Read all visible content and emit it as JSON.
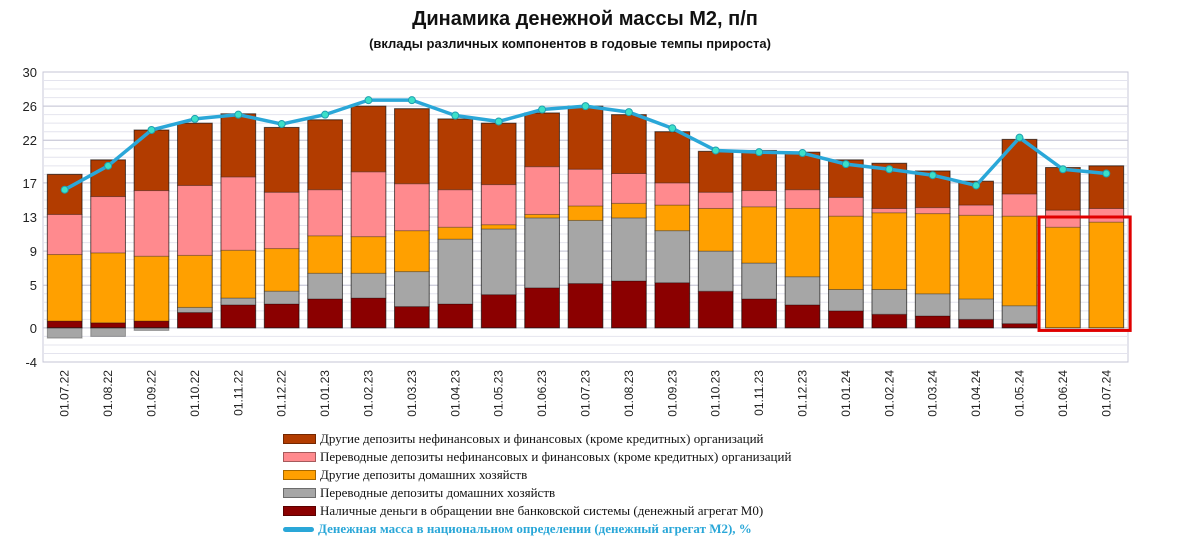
{
  "chart_data": {
    "type": "bar",
    "stacked": true,
    "title": "Динамика денежной массы М2, п/п",
    "subtitle": "(вклады различных компонентов в годовые темпы прироста)",
    "xlabel": "",
    "ylabel": "",
    "ylim": [
      -4,
      30
    ],
    "yticks": [
      -4,
      0,
      5,
      9,
      13,
      17,
      22,
      26,
      30
    ],
    "grid": true,
    "legend_position": "bottom",
    "categories": [
      "01.07.22",
      "01.08.22",
      "01.09.22",
      "01.10.22",
      "01.11.22",
      "01.12.22",
      "01.01.23",
      "01.02.23",
      "01.03.23",
      "01.04.23",
      "01.05.23",
      "01.06.23",
      "01.07.23",
      "01.08.23",
      "01.09.23",
      "01.10.23",
      "01.11.23",
      "01.12.23",
      "01.01.24",
      "01.02.24",
      "01.03.24",
      "01.04.24",
      "01.05.24",
      "01.06.24",
      "01.07.24"
    ],
    "series": [
      {
        "name": "Наличные деньги в обращении вне банковской системы (денежный агрегат М0)",
        "color": "#8b0000",
        "values": [
          0.8,
          0.6,
          0.8,
          1.8,
          2.7,
          2.8,
          3.4,
          3.5,
          2.5,
          2.8,
          3.9,
          4.7,
          5.2,
          5.5,
          5.3,
          4.3,
          3.4,
          2.7,
          2.0,
          1.6,
          1.4,
          1.0,
          0.5,
          0.0,
          0.0
        ]
      },
      {
        "name": "Переводные депозиты домашних хозяйств",
        "color": "#a6a6a6",
        "values": [
          -1.2,
          -1.0,
          -0.3,
          0.6,
          0.8,
          1.5,
          3.0,
          2.9,
          4.1,
          7.6,
          7.7,
          8.2,
          7.4,
          7.4,
          6.1,
          4.7,
          4.2,
          3.3,
          2.5,
          2.9,
          2.6,
          2.4,
          2.1,
          0.0,
          0.0
        ]
      },
      {
        "name": "Другие депозиты домашних хозяйств",
        "color": "#ffa000",
        "values": [
          7.8,
          8.2,
          7.6,
          6.1,
          5.6,
          5.0,
          4.4,
          4.3,
          4.8,
          1.4,
          0.5,
          0.4,
          1.7,
          1.7,
          3.0,
          5.0,
          6.6,
          8.0,
          8.6,
          9.0,
          9.4,
          9.8,
          10.5,
          11.8,
          12.4
        ]
      },
      {
        "name": "Переводные депозиты нефинансовых и финансовых (кроме кредитных)  организаций",
        "color": "#ff8a8e",
        "values": [
          4.7,
          6.6,
          7.7,
          8.2,
          8.6,
          6.6,
          5.4,
          7.6,
          5.5,
          4.4,
          4.7,
          5.6,
          4.3,
          3.5,
          2.6,
          1.9,
          1.9,
          2.2,
          2.2,
          0.5,
          0.7,
          1.2,
          2.6,
          2.0,
          1.6
        ]
      },
      {
        "name": "Другие депозиты нефинансовых и финансовых (кроме кредитных)  организаций",
        "color": "#b23c00",
        "values": [
          4.7,
          4.3,
          7.1,
          7.3,
          7.4,
          7.6,
          8.2,
          7.7,
          8.8,
          8.3,
          7.2,
          6.3,
          7.4,
          6.9,
          6.0,
          4.8,
          4.7,
          4.4,
          4.4,
          5.3,
          4.3,
          2.8,
          6.4,
          5.0,
          5.0
        ]
      }
    ],
    "line": {
      "name": "Денежная масса в национальном  определении  (денежный агрегат  М2), %",
      "color": "#2aa7d8",
      "values": [
        16.2,
        19.0,
        23.2,
        24.5,
        25.0,
        23.9,
        25.0,
        26.7,
        26.7,
        24.9,
        24.2,
        25.6,
        26.0,
        25.3,
        23.4,
        20.8,
        20.6,
        20.5,
        19.2,
        18.6,
        17.9,
        16.7,
        22.3,
        18.6,
        18.1
      ]
    }
  },
  "legend": {
    "items": [
      {
        "label": "Другие депозиты нефинансовых и финансовых (кроме кредитных)  организаций",
        "color": "#b23c00",
        "kind": "bar"
      },
      {
        "label": "Переводные депозиты нефинансовых и финансовых (кроме кредитных)  организаций",
        "color": "#ff8a8e",
        "kind": "bar"
      },
      {
        "label": "Другие депозиты домашних хозяйств",
        "color": "#ffa000",
        "kind": "bar"
      },
      {
        "label": "Переводные депозиты домашних хозяйств",
        "color": "#a6a6a6",
        "kind": "bar"
      },
      {
        "label": "Наличные деньги в обращении вне банковской системы (денежный агрегат М0)",
        "color": "#8b0000",
        "kind": "bar"
      },
      {
        "label": "Денежная масса в национальном  определении  (денежный агрегат  М2), %",
        "color": "#2aa7d8",
        "kind": "line"
      }
    ]
  },
  "highlight": {
    "from_category": "01.06.24",
    "to_category": "01.07.24",
    "color": "#e00000"
  }
}
